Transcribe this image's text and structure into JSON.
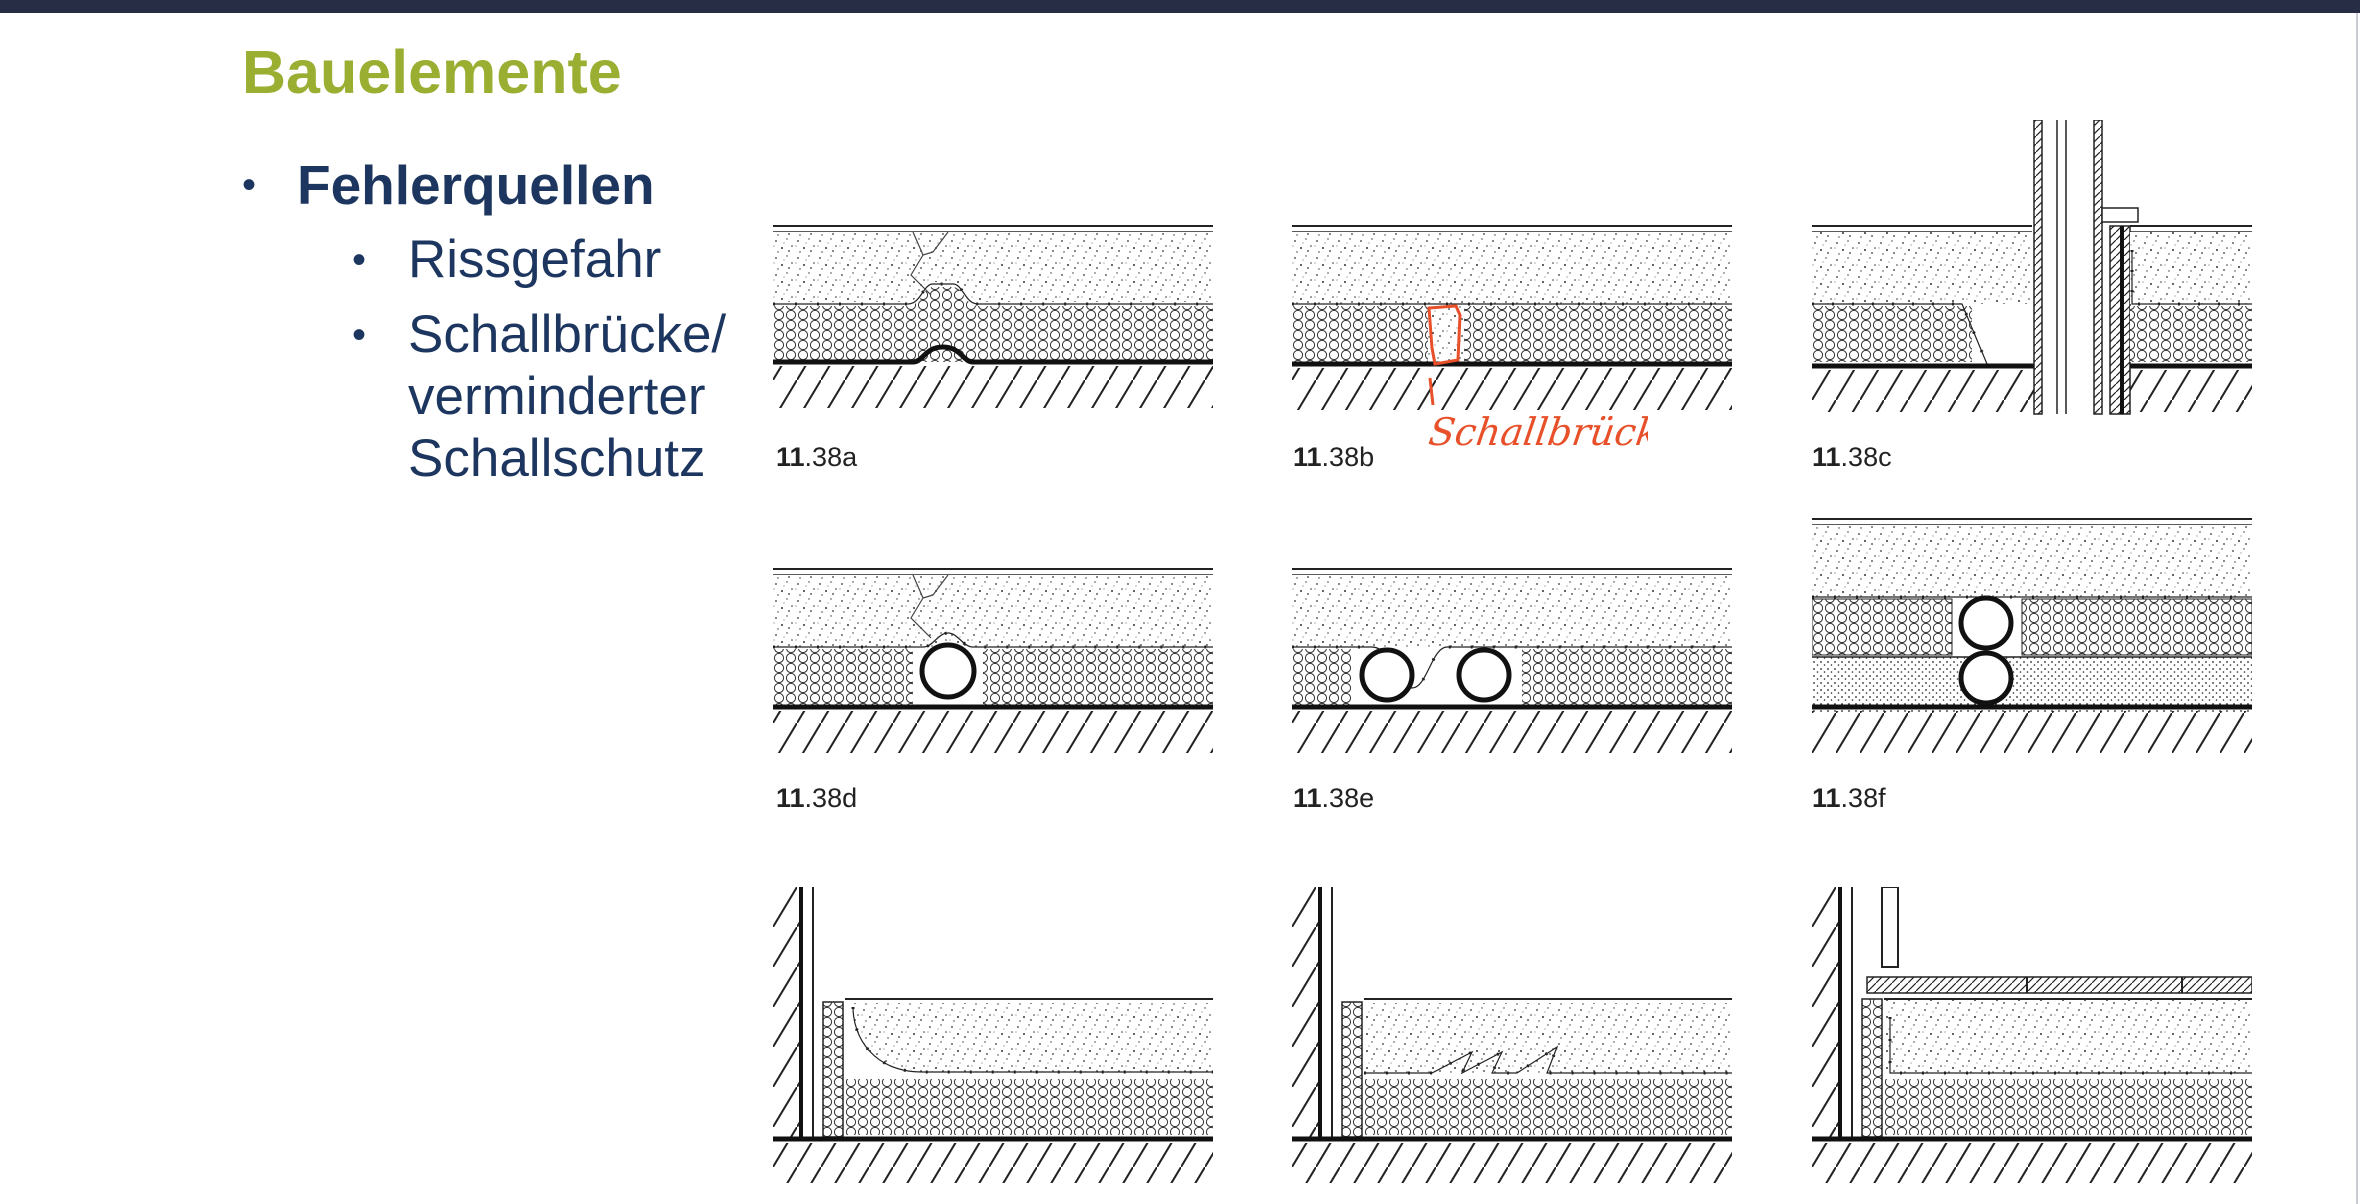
{
  "slide": {
    "title": "Bauelemente",
    "bullet_main": "Fehlerquellen",
    "sub_bullets": [
      "Rissgefahr",
      "Schallbrücke/",
      "verminderter",
      "Schallschutz"
    ]
  },
  "figures": [
    {
      "prefix": "11",
      "suffix": ".38a"
    },
    {
      "prefix": "11",
      "suffix": ".38b"
    },
    {
      "prefix": "11",
      "suffix": ".38c"
    },
    {
      "prefix": "11",
      "suffix": ".38d"
    },
    {
      "prefix": "11",
      "suffix": ".38e"
    },
    {
      "prefix": "11",
      "suffix": ".38f"
    }
  ],
  "annotation": {
    "handwritten_text": "Schallbrücke",
    "color": "#e8502a"
  },
  "colors": {
    "title": "#9aae32",
    "text": "#1d365f",
    "topbar": "#262d45"
  }
}
